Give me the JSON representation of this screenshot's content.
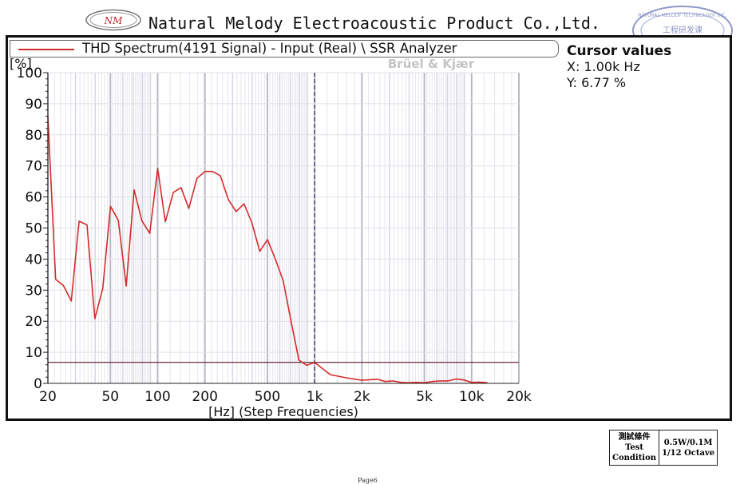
{
  "header": {
    "logo_text": "NM",
    "company": "Natural Melody Electroacoustic Product Co.,Ltd.",
    "seal_text": "NATURAL MELODY TECHNOLOGY INC. 工程研发课"
  },
  "legend": {
    "series_label": "THD Spectrum(4191 Signal) - Input (Real) \\ SSR Analyzer",
    "watermark": "Brüel & Kjær"
  },
  "cursor": {
    "title": "Cursor values",
    "x": "X: 1.00k Hz",
    "y": "Y: 6.77 %"
  },
  "chart_data": {
    "type": "line",
    "ylabel": "[%]",
    "xlabel": "[Hz] (Step Frequencies)",
    "x_scale": "log",
    "xlim": [
      20,
      20000
    ],
    "ylim": [
      0,
      100
    ],
    "grid": true,
    "x_ticks": [
      {
        "value": 20,
        "label": "20"
      },
      {
        "value": 50,
        "label": "50"
      },
      {
        "value": 100,
        "label": "100"
      },
      {
        "value": 200,
        "label": "200"
      },
      {
        "value": 500,
        "label": "500"
      },
      {
        "value": 1000,
        "label": "1k"
      },
      {
        "value": 2000,
        "label": "2k"
      },
      {
        "value": 5000,
        "label": "5k"
      },
      {
        "value": 10000,
        "label": "10k"
      },
      {
        "value": 20000,
        "label": "20k"
      }
    ],
    "y_ticks": [
      {
        "value": 0,
        "label": "0"
      },
      {
        "value": 10,
        "label": "10"
      },
      {
        "value": 20,
        "label": "20"
      },
      {
        "value": 30,
        "label": "30"
      },
      {
        "value": 40,
        "label": "40"
      },
      {
        "value": 50,
        "label": "50"
      },
      {
        "value": 60,
        "label": "60"
      },
      {
        "value": 70,
        "label": "70"
      },
      {
        "value": 80,
        "label": "80"
      },
      {
        "value": 90,
        "label": "90"
      },
      {
        "value": 100,
        "label": "100"
      }
    ],
    "series": [
      {
        "name": "THD Spectrum(4191 Signal) - Input (Real) \\ SSR Analyzer",
        "color": "#d42b2b",
        "x": [
          20,
          22.4,
          25.1,
          28.2,
          31.6,
          35.5,
          39.8,
          44.7,
          50.1,
          56.2,
          63.1,
          70.8,
          79.4,
          89.1,
          100,
          112,
          126,
          141,
          158,
          178,
          200,
          224,
          251,
          282,
          316,
          355,
          398,
          447,
          501,
          562,
          631,
          708,
          794,
          891,
          1000,
          1259,
          1585,
          1995,
          2512,
          2818,
          3162,
          3548,
          3981,
          4467,
          5012,
          5623,
          6310,
          7079,
          7943,
          8913,
          10000,
          11220,
          12589
        ],
        "y": [
          86,
          33.5,
          31.5,
          26.5,
          52.2,
          51,
          20.8,
          30.5,
          57,
          52.5,
          31.3,
          62.3,
          52.3,
          48.3,
          69.2,
          52,
          61.5,
          63,
          56.3,
          66,
          68.2,
          68.2,
          66.8,
          59.2,
          55.3,
          57.8,
          51.8,
          42.5,
          46.3,
          40,
          33,
          20,
          7.5,
          5.8,
          6.77,
          2.8,
          1.8,
          1.0,
          1.3,
          0.6,
          0.8,
          0.3,
          0.2,
          0.3,
          0.2,
          0.6,
          0.8,
          0.8,
          1.4,
          1.1,
          0.3,
          0.4,
          0.2
        ]
      }
    ],
    "reference_line_y": 6.77,
    "cursor_x": 1000
  },
  "test_condition": {
    "label_cn": "測試條件",
    "label_en_1": "Test",
    "label_en_2": "Condition",
    "value_1": "0.5W/0.1M",
    "value_2": "1/12 Octave"
  },
  "footer": {
    "page": "Page6"
  }
}
